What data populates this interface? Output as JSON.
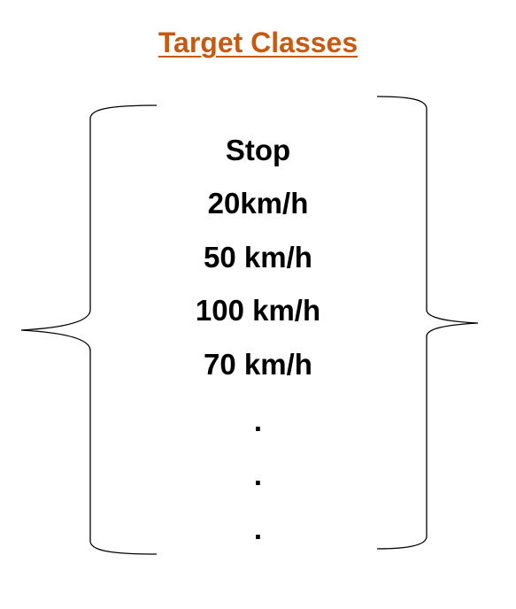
{
  "title": {
    "text": "Target Classes",
    "color": "#c55a11"
  },
  "classes": [
    "Stop",
    "20km/h",
    "50 km/h",
    "100 km/h",
    "70 km/h",
    ".",
    ".",
    "."
  ],
  "colors": {
    "text": "#000000",
    "brace": "#000000",
    "background": "#ffffff"
  }
}
